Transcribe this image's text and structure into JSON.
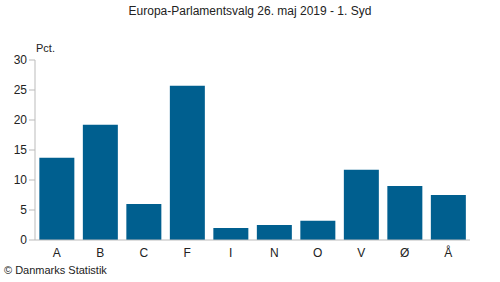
{
  "chart_data": {
    "type": "bar",
    "title": "Europa-Parlamentsvalg 26. maj 2019 - 1. Syd",
    "ylabel": "Pct.",
    "annotations": [
      "© Danmarks Statistik"
    ],
    "categories": [
      "A",
      "B",
      "C",
      "F",
      "I",
      "N",
      "O",
      "V",
      "Ø",
      "Å"
    ],
    "values": [
      13.7,
      19.2,
      6.0,
      25.7,
      2.0,
      2.5,
      3.2,
      11.7,
      9.0,
      7.5
    ],
    "color": "#005f8f",
    "ylim": [
      0,
      30
    ],
    "yticks": [
      0,
      5,
      10,
      15,
      20,
      25,
      30
    ],
    "grid": false
  }
}
